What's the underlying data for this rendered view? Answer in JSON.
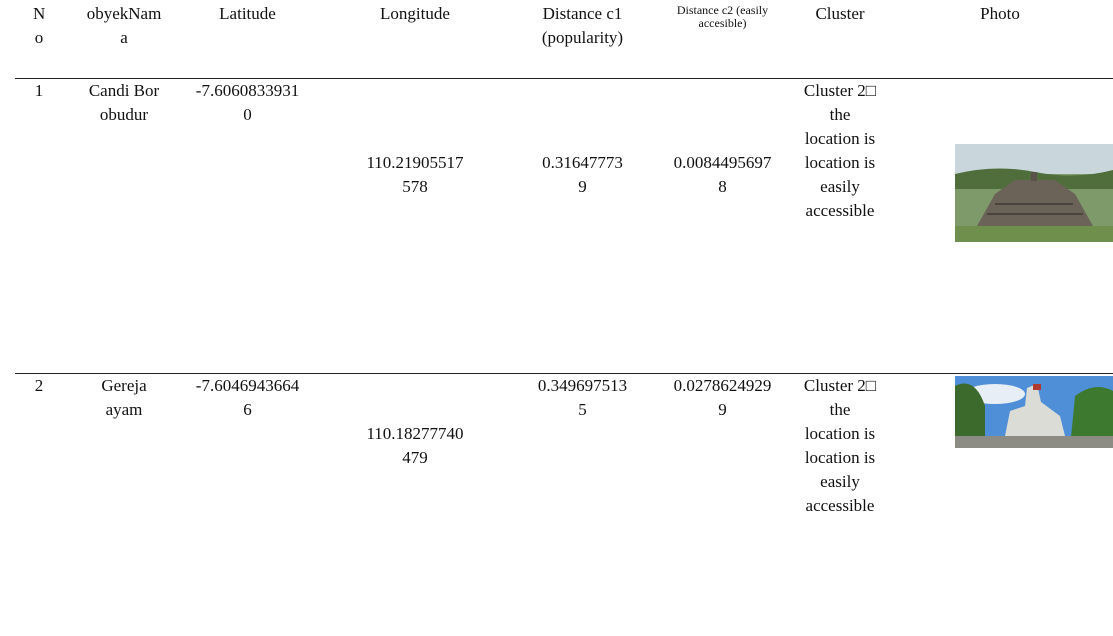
{
  "table": {
    "header": [
      "No",
      "obyekNama",
      "Latitude",
      "Longitude",
      "Distance c1 (popularity)",
      "Distance c2 (easily accesible)",
      "Cluster",
      "Photo"
    ],
    "rows": [
      [
        "1",
        "Candi Borobudur",
        "-7.60608339310",
        "110.21905517578",
        "0.316477739",
        "0.00844956978",
        "Cluster 2□ the location is location is easily accessible"
      ],
      [
        "2",
        "Gereja ayam",
        "-7.60469436646",
        "110.18277740479",
        "0.3496975135",
        "0.02786249299",
        "Cluster 2□ the location is location is easily accessible"
      ]
    ]
  }
}
